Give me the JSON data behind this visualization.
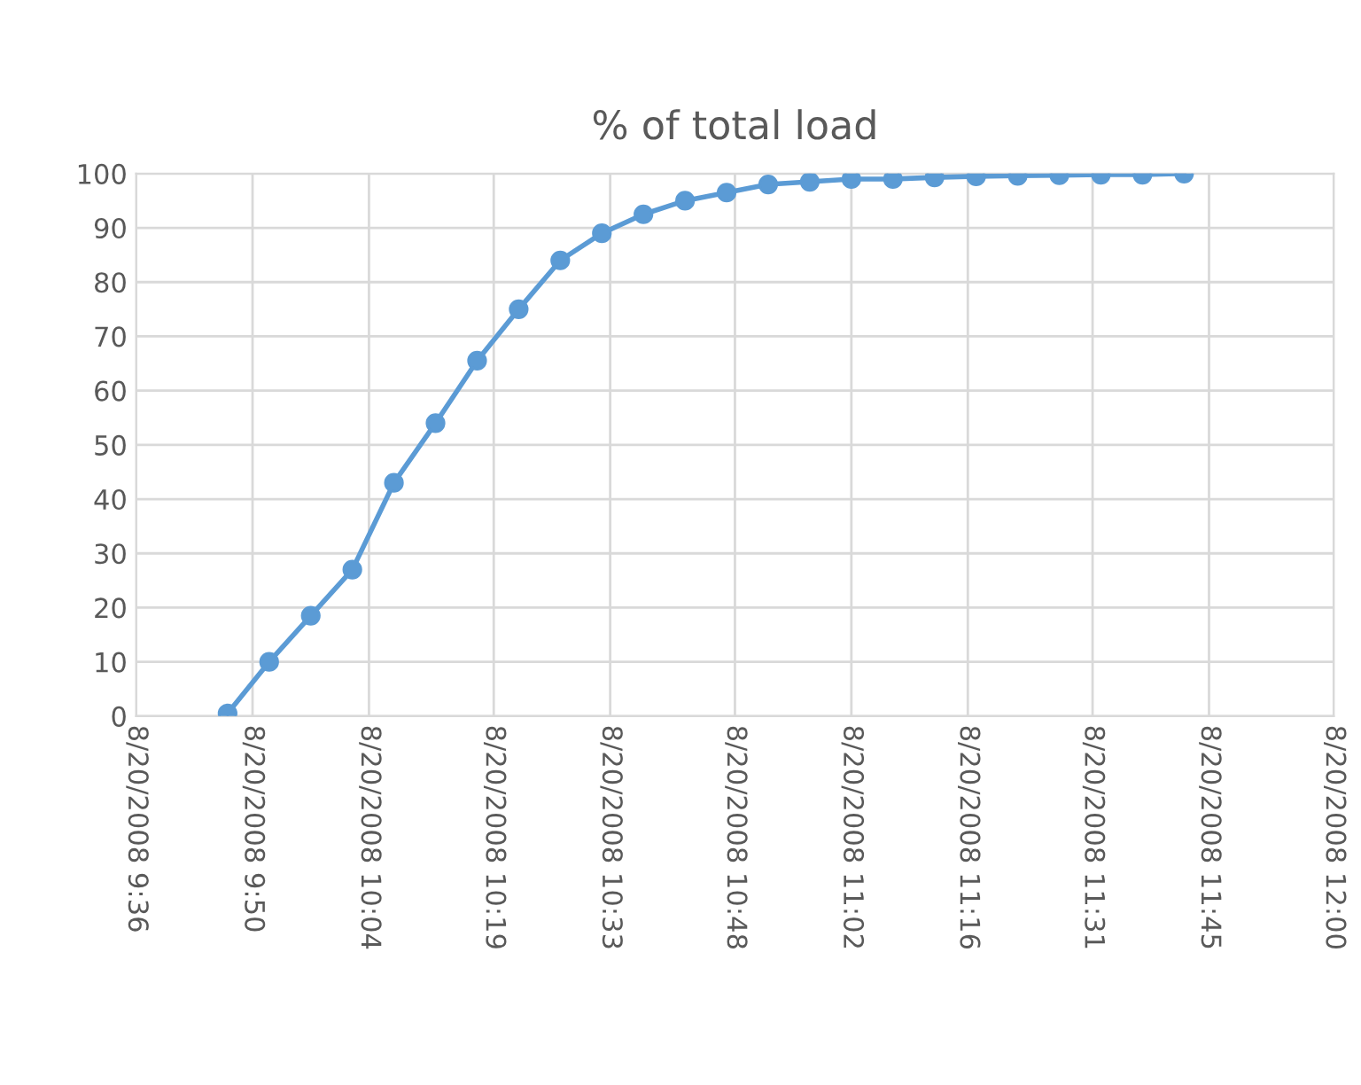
{
  "chart_data": {
    "type": "line",
    "title": "% of total load",
    "x": [
      "2008-08-20T09:47",
      "2008-08-20T09:52",
      "2008-08-20T09:57",
      "2008-08-20T10:02",
      "2008-08-20T10:07",
      "2008-08-20T10:12",
      "2008-08-20T10:17",
      "2008-08-20T10:22",
      "2008-08-20T10:27",
      "2008-08-20T10:32",
      "2008-08-20T10:37",
      "2008-08-20T10:42",
      "2008-08-20T10:47",
      "2008-08-20T10:52",
      "2008-08-20T10:57",
      "2008-08-20T11:02",
      "2008-08-20T11:07",
      "2008-08-20T11:12",
      "2008-08-20T11:17",
      "2008-08-20T11:22",
      "2008-08-20T11:27",
      "2008-08-20T11:32",
      "2008-08-20T11:37",
      "2008-08-20T11:42"
    ],
    "series": [
      {
        "color": "#5b9bd5",
        "values": [
          0.5,
          10,
          18.5,
          27,
          43,
          54,
          65.5,
          75,
          84,
          89,
          92.5,
          95,
          96.5,
          98,
          98.5,
          99,
          99,
          99.3,
          99.5,
          99.6,
          99.7,
          99.8,
          99.8,
          100
        ]
      }
    ],
    "xlim": [
      "2008-08-20T09:36",
      "2008-08-20T12:00"
    ],
    "xticks": [
      {
        "value": "2008-08-20T09:36",
        "label": "8/20/2008 9:36"
      },
      {
        "value": "2008-08-20T09:50",
        "label": "8/20/2008 9:50"
      },
      {
        "value": "2008-08-20T10:04",
        "label": "8/20/2008 10:04"
      },
      {
        "value": "2008-08-20T10:19",
        "label": "8/20/2008 10:19"
      },
      {
        "value": "2008-08-20T10:33",
        "label": "8/20/2008 10:33"
      },
      {
        "value": "2008-08-20T10:48",
        "label": "8/20/2008 10:48"
      },
      {
        "value": "2008-08-20T11:02",
        "label": "8/20/2008 11:02"
      },
      {
        "value": "2008-08-20T11:16",
        "label": "8/20/2008 11:16"
      },
      {
        "value": "2008-08-20T11:31",
        "label": "8/20/2008 11:31"
      },
      {
        "value": "2008-08-20T11:45",
        "label": "8/20/2008 11:45"
      },
      {
        "value": "2008-08-20T12:00",
        "label": "8/20/2008 12:00"
      }
    ],
    "ylim": [
      0,
      100
    ],
    "yticks": [
      0,
      10,
      20,
      30,
      40,
      50,
      60,
      70,
      80,
      90,
      100
    ],
    "grid": true,
    "marker": "circle",
    "line_style": "solid"
  }
}
